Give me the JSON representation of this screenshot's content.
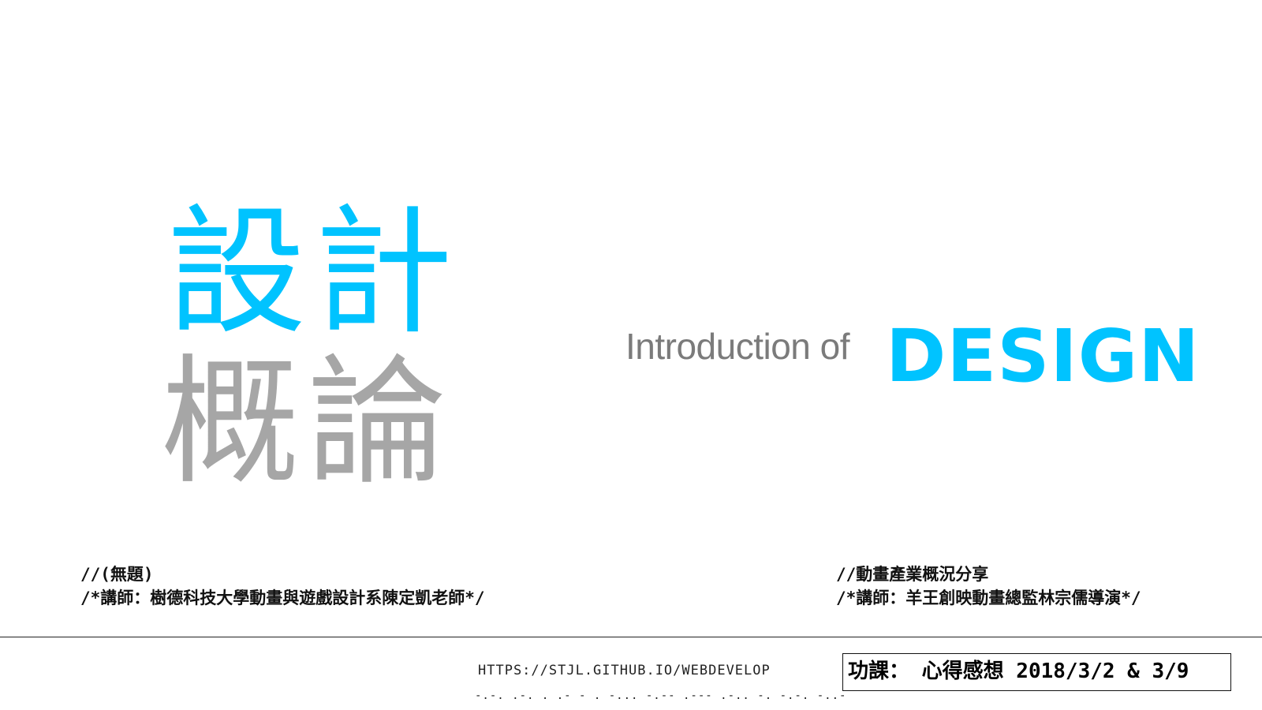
{
  "title": {
    "line1": "設計",
    "line2": "概論"
  },
  "subtitle": {
    "prefix": "Introduction of",
    "main": "DESIGN"
  },
  "lectures": {
    "left": {
      "line1": "//(無題)",
      "line2": "/*講師：樹德科技大學動畫與遊戲設計系陳定凱老師*/"
    },
    "right": {
      "line1": "//動畫產業概況分享",
      "line2": "/*講師：羊王創映動畫總監林宗儒導演*/"
    }
  },
  "footer": {
    "url": "HTTPS://STJL.GITHUB.IO/WEBDEVELOP",
    "morse": "-.-. .-. . .- - .   -... -.--   .--- .-.. -. -.-. -..-",
    "homework": "功課： 心得感想 2018/3/2 & 3/9"
  },
  "colors": {
    "accent": "#00c3ff",
    "gray": "#a6a6a6",
    "text_gray": "#7b7b7b"
  }
}
